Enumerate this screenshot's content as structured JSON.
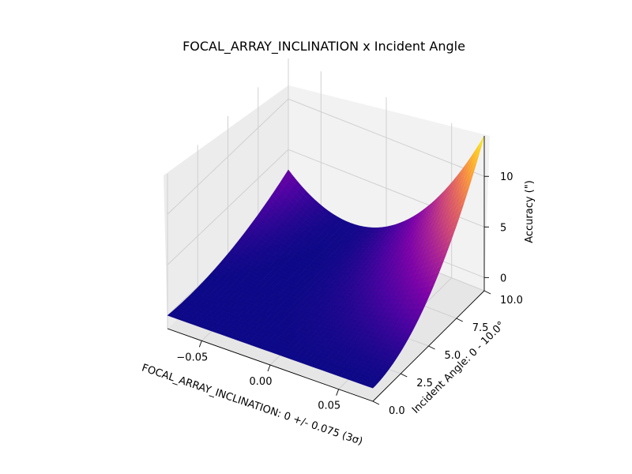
{
  "chart_data": {
    "type": "surface",
    "title": "FOCAL_ARRAY_INCLINATION x Incident Angle",
    "xlabel": "FOCAL_ARRAY_INCLINATION: 0 +/- 0.075 (3σ)",
    "ylabel": "Incident Angle: 0 - 10.0°",
    "zlabel": "Accuracy (\")",
    "xlim": [
      -0.075,
      0.075
    ],
    "ylim": [
      0.0,
      10.0
    ],
    "zlim": [
      -1.3,
      14.0
    ],
    "x_ticks": [
      -0.05,
      0.0,
      0.05
    ],
    "x_tick_labels": [
      "−0.05",
      "0.00",
      "0.05"
    ],
    "y_ticks": [
      0.0,
      2.5,
      5.0,
      7.5,
      10.0
    ],
    "y_tick_labels": [
      "0.0",
      "2.5",
      "5.0",
      "7.5",
      "10.0"
    ],
    "z_ticks": [
      0,
      5,
      10
    ],
    "z_tick_labels": [
      "0",
      "5",
      "10"
    ],
    "colormap": "plasma",
    "surface_samples": {
      "x": [
        -0.075,
        0.0,
        0.075
      ],
      "y": [
        0.0,
        5.0,
        10.0
      ],
      "z": [
        [
          0.0,
          0.4,
          3.0
        ],
        [
          0.0,
          0.3,
          1.2
        ],
        [
          0.0,
          3.5,
          14.0
        ]
      ]
    },
    "grid": true
  }
}
